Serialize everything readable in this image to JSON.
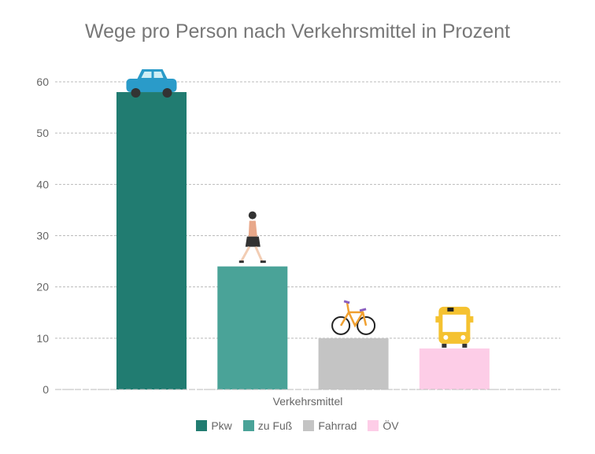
{
  "chart_data": {
    "type": "bar",
    "title": "Wege pro Person nach Verkehrsmittel in Prozent",
    "xlabel": "Verkehrsmittel",
    "ylabel": "",
    "ylim": [
      0,
      60
    ],
    "yticks": [
      0,
      10,
      20,
      30,
      40,
      50,
      60
    ],
    "grid": true,
    "legend_position": "bottom",
    "categories": [
      "Pkw",
      "zu Fuß",
      "Fahrrad",
      "ÖV"
    ],
    "values": [
      58,
      24,
      10,
      8
    ],
    "colors": [
      "#217c71",
      "#4aa398",
      "#c4c4c4",
      "#fdcde7"
    ],
    "icons": [
      "car-icon",
      "pedestrian-icon",
      "bicycle-icon",
      "bus-icon"
    ]
  }
}
